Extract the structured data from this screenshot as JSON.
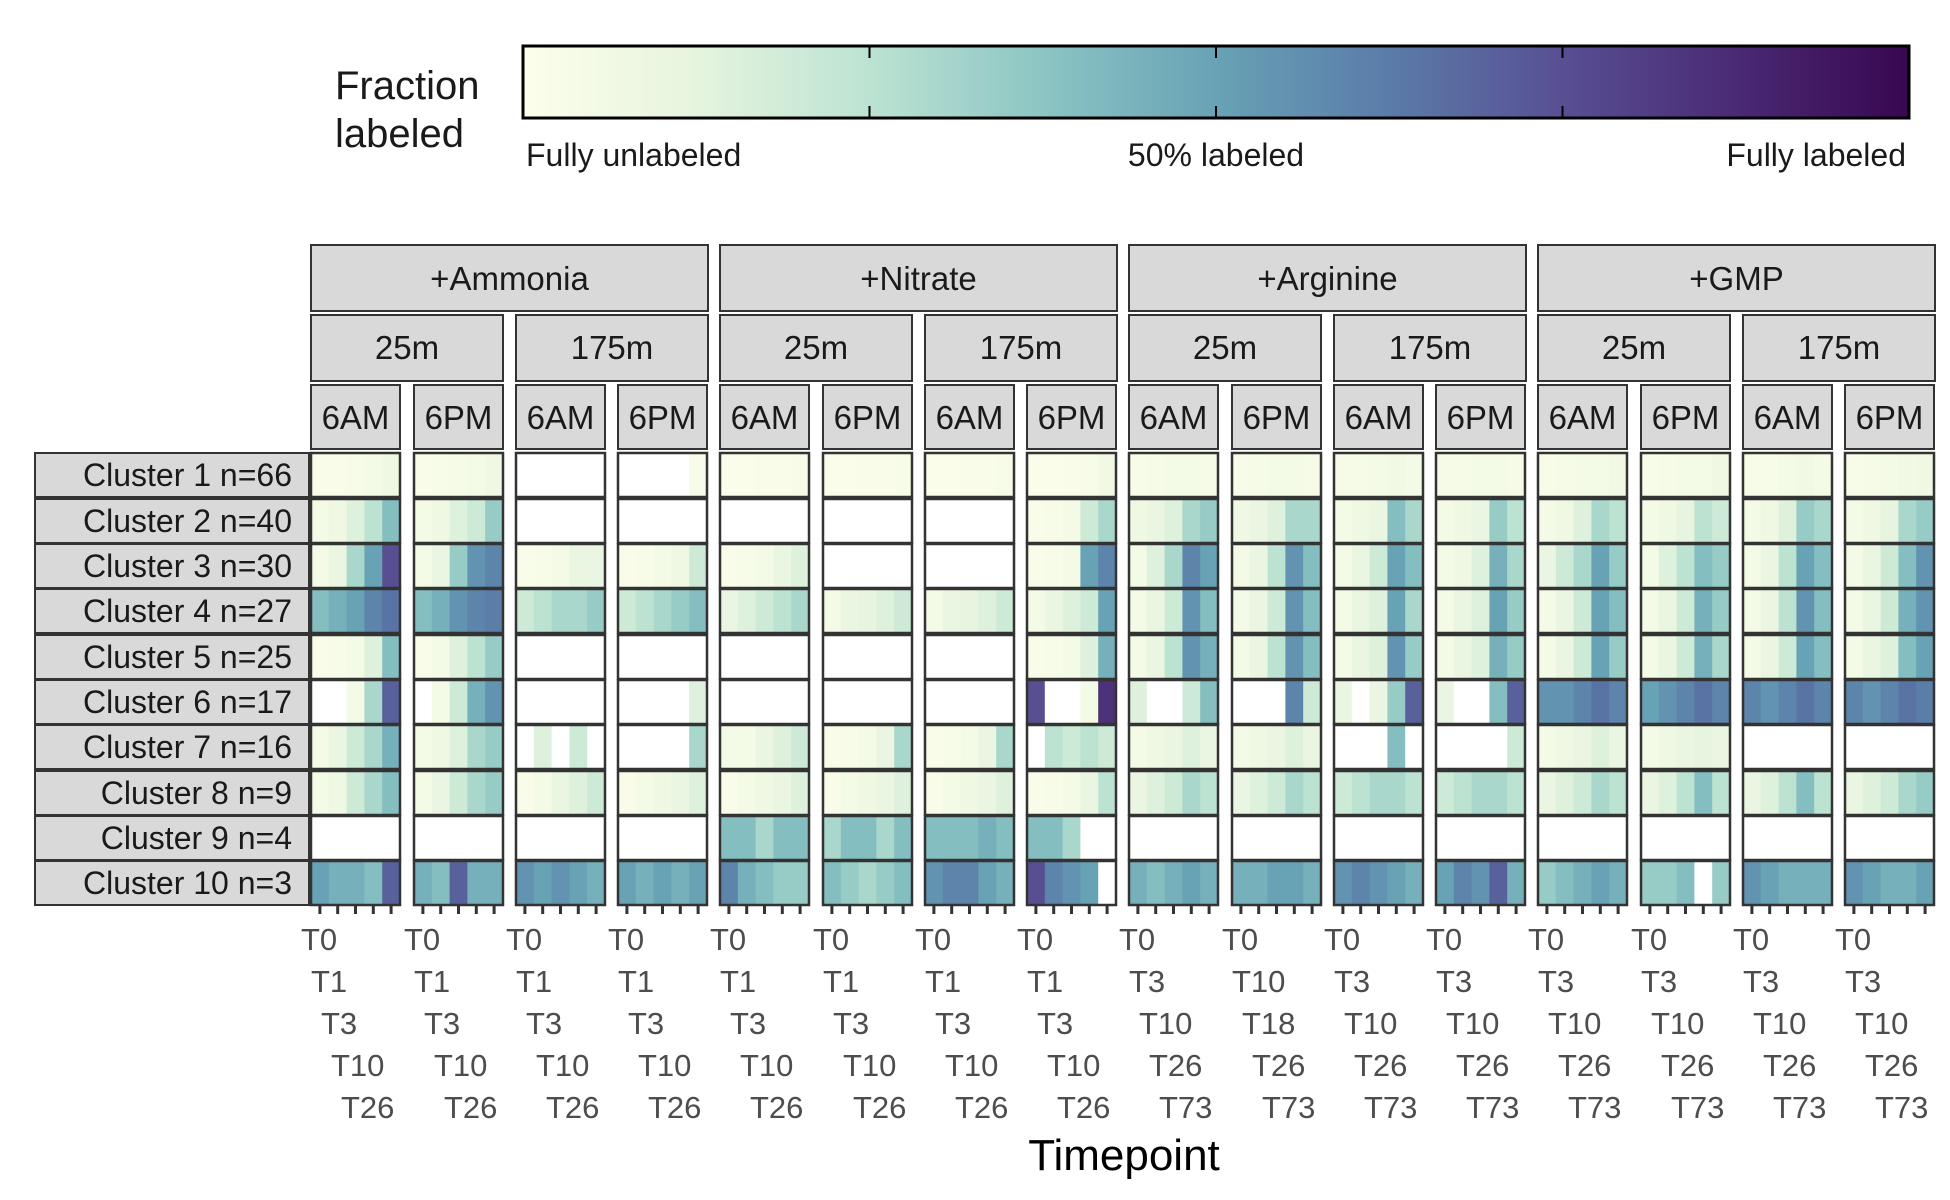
{
  "chart_data": {
    "type": "heatmap",
    "xlabel": "Timepoint",
    "legend": {
      "title_lines": [
        "Fraction",
        "labeled"
      ],
      "labels": [
        "Fully unlabeled",
        "50% labeled",
        "Fully labeled"
      ],
      "position": "top",
      "colors": [
        "#FCFEEB",
        "#E6F4DE",
        "#BCE3D2",
        "#8CC5C3",
        "#68A2B5",
        "#5A7CA9",
        "#584F93",
        "#4A2A73",
        "#380752"
      ]
    },
    "substrates": [
      "+Ammonia",
      "+Nitrate",
      "+Arginine",
      "+GMP"
    ],
    "depths": [
      "25m",
      "175m"
    ],
    "times_of_day": [
      "6AM",
      "6PM"
    ],
    "timepoint_sets": {
      "short": [
        "T0",
        "T1",
        "T3",
        "T10",
        "T26"
      ],
      "long": [
        "T0",
        "T3",
        "T10",
        "T26",
        "T73"
      ],
      "long_alt": [
        "T0",
        "T10",
        "T18",
        "T26",
        "T73"
      ]
    },
    "panel_timepoint_set": [
      "short",
      "short",
      "short",
      "short",
      "short",
      "short",
      "short",
      "short",
      "long",
      "long_alt",
      "long",
      "long",
      "long",
      "long",
      "long",
      "long"
    ],
    "clusters": [
      "Cluster 1 n=66",
      "Cluster 2 n=40",
      "Cluster 3 n=30",
      "Cluster 4 n=27",
      "Cluster 5 n=25",
      "Cluster 6 n=17",
      "Cluster 7 n=16",
      "Cluster 8 n=9",
      "Cluster 9 n=4",
      "Cluster 10 n=3"
    ],
    "cell_matrix_note": "values: fraction labeled (0-1) per cluster x panel x timepoint; null = no data",
    "values": [
      [
        [
          0.02,
          0.02,
          0.03,
          0.05,
          0.08
        ],
        [
          0.02,
          0.03,
          0.04,
          0.05,
          0.08
        ],
        [
          0,
          0,
          0,
          0,
          0
        ],
        [
          0,
          0,
          0,
          0,
          0.03
        ],
        [
          0.01,
          0.01,
          0.02,
          0.02,
          0.03
        ],
        [
          0.01,
          0.01,
          0.02,
          0.02,
          0.03
        ],
        [
          0.01,
          0.01,
          0.02,
          0.02,
          0.03
        ],
        [
          0.01,
          0.01,
          0.02,
          0.03,
          0.06
        ],
        [
          0.03,
          0.04,
          0.05,
          0.05,
          0.04
        ],
        [
          0.03,
          0.04,
          0.05,
          0.05,
          0.04
        ],
        [
          0.04,
          0.04,
          0.05,
          0.06,
          0.05
        ],
        [
          0.04,
          0.04,
          0.05,
          0.05,
          0.04
        ],
        [
          0.03,
          0.04,
          0.05,
          0.05,
          0.06
        ],
        [
          0.03,
          0.04,
          0.05,
          0.05,
          0.07
        ],
        [
          0.03,
          0.03,
          0.05,
          0.06,
          0.05
        ],
        [
          0.03,
          0.04,
          0.05,
          0.06,
          0.07
        ]
      ],
      [
        [
          0.05,
          0.07,
          0.15,
          0.25,
          0.4
        ],
        [
          0.05,
          0.08,
          0.15,
          0.2,
          0.35
        ],
        [
          0,
          0,
          0,
          0,
          0
        ],
        [
          0,
          0,
          0,
          0,
          0
        ],
        [
          0,
          0,
          0,
          0,
          0
        ],
        [
          0,
          0,
          0,
          0,
          0
        ],
        [
          0,
          0,
          0,
          0,
          0
        ],
        [
          0.02,
          0.03,
          0.05,
          0.2,
          0.3
        ],
        [
          0.08,
          0.1,
          0.15,
          0.3,
          0.35
        ],
        [
          0.08,
          0.1,
          0.15,
          0.3,
          0.3
        ],
        [
          0.05,
          0.08,
          0.1,
          0.4,
          0.3
        ],
        [
          0.05,
          0.08,
          0.1,
          0.35,
          0.25
        ],
        [
          0.05,
          0.08,
          0.15,
          0.3,
          0.25
        ],
        [
          0.05,
          0.08,
          0.12,
          0.25,
          0.2
        ],
        [
          0.05,
          0.08,
          0.15,
          0.35,
          0.3
        ],
        [
          0.05,
          0.08,
          0.12,
          0.3,
          0.35
        ]
      ],
      [
        [
          0.05,
          0.1,
          0.3,
          0.5,
          0.75
        ],
        [
          0.05,
          0.1,
          0.35,
          0.55,
          0.6
        ],
        [
          0.02,
          0.03,
          0.05,
          0.1,
          0.1
        ],
        [
          0.02,
          0.03,
          0.05,
          0.08,
          0.2
        ],
        [
          0.02,
          0.03,
          0.05,
          0.1,
          0.15
        ],
        [
          0,
          0,
          0,
          0,
          0
        ],
        [
          0,
          0,
          0,
          0,
          0
        ],
        [
          0.02,
          0.03,
          0.05,
          0.5,
          0.6
        ],
        [
          0.05,
          0.15,
          0.3,
          0.6,
          0.5
        ],
        [
          0.05,
          0.1,
          0.25,
          0.55,
          0.4
        ],
        [
          0.05,
          0.1,
          0.2,
          0.5,
          0.4
        ],
        [
          0.05,
          0.08,
          0.15,
          0.45,
          0.3
        ],
        [
          0.1,
          0.2,
          0.3,
          0.5,
          0.35
        ],
        [
          0.05,
          0.15,
          0.25,
          0.4,
          0.35
        ],
        [
          0.05,
          0.1,
          0.25,
          0.5,
          0.4
        ],
        [
          0.05,
          0.1,
          0.2,
          0.4,
          0.55
        ]
      ],
      [
        [
          0.4,
          0.45,
          0.5,
          0.6,
          0.65
        ],
        [
          0.4,
          0.45,
          0.55,
          0.6,
          0.62
        ],
        [
          0.2,
          0.25,
          0.3,
          0.3,
          0.35
        ],
        [
          0.2,
          0.25,
          0.3,
          0.35,
          0.4
        ],
        [
          0.1,
          0.15,
          0.2,
          0.25,
          0.3
        ],
        [
          0.05,
          0.1,
          0.12,
          0.15,
          0.2
        ],
        [
          0.05,
          0.1,
          0.12,
          0.15,
          0.2
        ],
        [
          0.05,
          0.1,
          0.15,
          0.2,
          0.5
        ],
        [
          0.05,
          0.1,
          0.2,
          0.55,
          0.4
        ],
        [
          0.05,
          0.1,
          0.2,
          0.55,
          0.4
        ],
        [
          0.05,
          0.1,
          0.15,
          0.5,
          0.3
        ],
        [
          0.05,
          0.1,
          0.15,
          0.5,
          0.35
        ],
        [
          0.05,
          0.1,
          0.2,
          0.5,
          0.4
        ],
        [
          0.05,
          0.1,
          0.2,
          0.45,
          0.35
        ],
        [
          0.05,
          0.1,
          0.25,
          0.55,
          0.4
        ],
        [
          0.05,
          0.1,
          0.2,
          0.45,
          0.55
        ]
      ],
      [
        [
          0.02,
          0.03,
          0.05,
          0.15,
          0.4
        ],
        [
          0.02,
          0.05,
          0.15,
          0.25,
          0.35
        ],
        [
          0,
          0,
          0,
          0,
          0
        ],
        [
          0,
          0,
          0,
          0,
          0
        ],
        [
          0,
          0,
          0,
          0,
          0
        ],
        [
          0,
          0,
          0,
          0,
          0
        ],
        [
          0,
          0,
          0,
          0,
          0
        ],
        [
          0.02,
          0.03,
          0.05,
          0.15,
          0.45
        ],
        [
          0.05,
          0.1,
          0.25,
          0.55,
          0.45
        ],
        [
          0.05,
          0.1,
          0.25,
          0.55,
          0.4
        ],
        [
          0.05,
          0.1,
          0.15,
          0.55,
          0.35
        ],
        [
          0.05,
          0.1,
          0.15,
          0.45,
          0.35
        ],
        [
          0.05,
          0.1,
          0.2,
          0.5,
          0.35
        ],
        [
          0.05,
          0.1,
          0.2,
          0.45,
          0.3
        ],
        [
          0.05,
          0.1,
          0.2,
          0.5,
          0.4
        ],
        [
          0.05,
          0.1,
          0.15,
          0.4,
          0.5
        ]
      ],
      [
        [
          0,
          0,
          0.05,
          0.3,
          0.7
        ],
        [
          0,
          0.05,
          0.2,
          0.45,
          0.55
        ],
        [
          0,
          0,
          0,
          0,
          0
        ],
        [
          0,
          0,
          0,
          0,
          0.15
        ],
        [
          0,
          0,
          0,
          0,
          0
        ],
        [
          0,
          0,
          0,
          0,
          0
        ],
        [
          0,
          0,
          0,
          0,
          0
        ],
        [
          0.75,
          0,
          0,
          0.05,
          0.85
        ],
        [
          0.15,
          0,
          0,
          0.2,
          0.4
        ],
        [
          0,
          0,
          0,
          0.6,
          0.2
        ],
        [
          0.1,
          0,
          0.1,
          0.35,
          0.7
        ],
        [
          0.1,
          0,
          0,
          0.4,
          0.7
        ],
        [
          0.55,
          0.55,
          0.6,
          0.65,
          0.6
        ],
        [
          0.5,
          0.55,
          0.6,
          0.65,
          0.6
        ],
        [
          0.6,
          0.55,
          0.6,
          0.65,
          0.6
        ],
        [
          0.6,
          0.55,
          0.6,
          0.65,
          0.62
        ]
      ],
      [
        [
          0.05,
          0.1,
          0.2,
          0.3,
          0.45
        ],
        [
          0.05,
          0.08,
          0.15,
          0.3,
          0.35
        ],
        [
          0,
          0.15,
          0,
          0.2,
          0
        ],
        [
          0,
          0,
          0,
          0,
          0.3
        ],
        [
          0.05,
          0.05,
          0.1,
          0.15,
          0.2
        ],
        [
          0.02,
          0.03,
          0.05,
          0.1,
          0.3
        ],
        [
          0.02,
          0.03,
          0.05,
          0.1,
          0.3
        ],
        [
          0,
          0.25,
          0.2,
          0.25,
          0.2
        ],
        [
          0.05,
          0.08,
          0.1,
          0.15,
          0.1
        ],
        [
          0.05,
          0.08,
          0.1,
          0.15,
          0.1
        ],
        [
          0,
          0,
          0,
          0.4,
          0
        ],
        [
          0,
          0,
          0,
          0,
          0.2
        ],
        [
          0.05,
          0.08,
          0.1,
          0.15,
          0.1
        ],
        [
          0.05,
          0.08,
          0.1,
          0.12,
          0.1
        ],
        [
          0,
          0,
          0,
          0,
          0
        ],
        [
          0,
          0,
          0,
          0,
          0
        ]
      ],
      [
        [
          0.05,
          0.08,
          0.2,
          0.3,
          0.4
        ],
        [
          0.05,
          0.1,
          0.2,
          0.3,
          0.35
        ],
        [
          0.02,
          0.05,
          0.1,
          0.15,
          0.2
        ],
        [
          0.02,
          0.05,
          0.08,
          0.1,
          0.15
        ],
        [
          0.02,
          0.05,
          0.08,
          0.1,
          0.15
        ],
        [
          0.02,
          0.05,
          0.08,
          0.1,
          0.15
        ],
        [
          0.02,
          0.05,
          0.08,
          0.1,
          0.15
        ],
        [
          0.02,
          0.03,
          0.05,
          0.1,
          0.25
        ],
        [
          0.1,
          0.15,
          0.2,
          0.3,
          0.25
        ],
        [
          0.1,
          0.15,
          0.2,
          0.3,
          0.25
        ],
        [
          0.2,
          0.25,
          0.3,
          0.3,
          0.25
        ],
        [
          0.2,
          0.25,
          0.3,
          0.3,
          0.25
        ],
        [
          0.1,
          0.15,
          0.2,
          0.3,
          0.25
        ],
        [
          0.1,
          0.15,
          0.25,
          0.4,
          0.25
        ],
        [
          0.1,
          0.15,
          0.25,
          0.4,
          0.25
        ],
        [
          0.1,
          0.15,
          0.2,
          0.3,
          0.35
        ]
      ],
      [
        [
          0,
          0,
          0,
          0,
          0
        ],
        [
          0,
          0,
          0,
          0,
          0
        ],
        [
          0,
          0,
          0,
          0,
          0
        ],
        [
          0,
          0,
          0,
          0,
          0
        ],
        [
          0.4,
          0.4,
          0.3,
          0.4,
          0.4
        ],
        [
          0.3,
          0.4,
          0.4,
          0.3,
          0.4
        ],
        [
          0.4,
          0.4,
          0.4,
          0.45,
          0.4
        ],
        [
          0.4,
          0.4,
          0.3,
          0,
          0
        ],
        [
          0,
          0,
          0,
          0,
          0
        ],
        [
          0,
          0,
          0,
          0,
          0
        ],
        [
          0,
          0,
          0,
          0,
          0
        ],
        [
          0,
          0,
          0,
          0,
          0
        ],
        [
          0,
          0,
          0,
          0,
          0
        ],
        [
          0,
          0,
          0,
          0,
          0
        ],
        [
          0,
          0,
          0,
          0,
          0
        ],
        [
          0,
          0,
          0,
          0,
          0
        ]
      ],
      [
        [
          0.5,
          0.45,
          0.45,
          0.4,
          0.7
        ],
        [
          0.45,
          0.4,
          0.7,
          0.45,
          0.45
        ],
        [
          0.55,
          0.5,
          0.55,
          0.5,
          0.45
        ],
        [
          0.5,
          0.45,
          0.5,
          0.45,
          0.5
        ],
        [
          0.6,
          0.45,
          0.4,
          0.35,
          0.35
        ],
        [
          0.4,
          0.35,
          0.3,
          0.35,
          0.4
        ],
        [
          0.55,
          0.6,
          0.6,
          0.5,
          0.45
        ],
        [
          0.75,
          0.6,
          0.55,
          0.5,
          0
        ],
        [
          0.45,
          0.4,
          0.45,
          0.5,
          0.45
        ],
        [
          0.45,
          0.45,
          0.5,
          0.5,
          0.45
        ],
        [
          0.55,
          0.6,
          0.55,
          0.5,
          0.45
        ],
        [
          0.5,
          0.6,
          0.55,
          0.7,
          0.45
        ],
        [
          0.35,
          0.4,
          0.45,
          0.5,
          0.45
        ],
        [
          0.35,
          0.35,
          0.4,
          0,
          0.35
        ],
        [
          0.55,
          0.5,
          0.45,
          0.45,
          0.45
        ],
        [
          0.55,
          0.5,
          0.45,
          0.45,
          0.5
        ]
      ]
    ]
  }
}
